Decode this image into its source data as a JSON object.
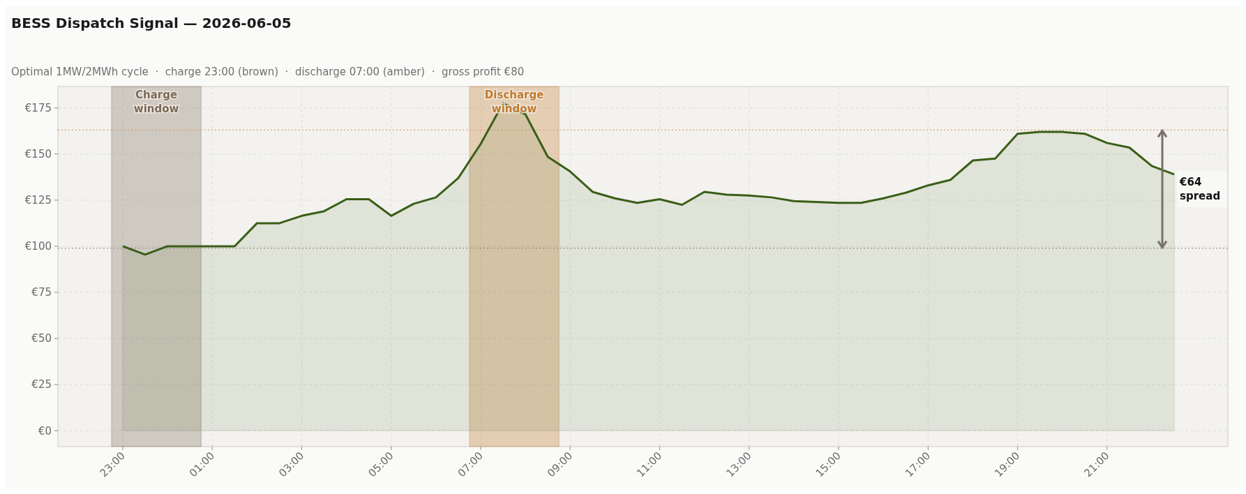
{
  "chart_data": {
    "type": "area",
    "title": "BESS Dispatch Signal — 2026-06-05",
    "subtitle": "Optimal 1MW/2MWh cycle  ·  charge 23:00 (brown)  ·  discharge 07:00 (amber)  ·  gross profit €80",
    "x": [
      "2026-06-04T23:00",
      "2026-06-04T23:30",
      "2026-06-05T00:00",
      "2026-06-05T00:30",
      "2026-06-05T01:00",
      "2026-06-05T01:30",
      "2026-06-05T02:00",
      "2026-06-05T02:30",
      "2026-06-05T03:00",
      "2026-06-05T03:30",
      "2026-06-05T04:00",
      "2026-06-05T04:30",
      "2026-06-05T05:00",
      "2026-06-05T05:30",
      "2026-06-05T06:00",
      "2026-06-05T06:30",
      "2026-06-05T07:00",
      "2026-06-05T07:30",
      "2026-06-05T08:00",
      "2026-06-05T08:30",
      "2026-06-05T09:00",
      "2026-06-05T09:30",
      "2026-06-05T10:00",
      "2026-06-05T10:30",
      "2026-06-05T11:00",
      "2026-06-05T11:30",
      "2026-06-05T12:00",
      "2026-06-05T12:30",
      "2026-06-05T13:00",
      "2026-06-05T13:30",
      "2026-06-05T14:00",
      "2026-06-05T14:30",
      "2026-06-05T15:00",
      "2026-06-05T15:30",
      "2026-06-05T16:00",
      "2026-06-05T16:30",
      "2026-06-05T17:00",
      "2026-06-05T17:30",
      "2026-06-05T18:00",
      "2026-06-05T18:30",
      "2026-06-05T19:00",
      "2026-06-05T19:30",
      "2026-06-05T20:00",
      "2026-06-05T20:30",
      "2026-06-05T21:00",
      "2026-06-05T21:30",
      "2026-06-05T22:00",
      "2026-06-05T22:30"
    ],
    "series": [
      {
        "color": "#3a5e17",
        "values": [
          100,
          95.5,
          100,
          100,
          100,
          100,
          112.5,
          112.5,
          116.5,
          119,
          125.5,
          125.5,
          116.5,
          123,
          126.5,
          137,
          155.5,
          177.5,
          171.5,
          148.5,
          140.5,
          129.5,
          126,
          123.5,
          125.5,
          122.5,
          129.5,
          128,
          127.5,
          126.5,
          124.5,
          124,
          123.5,
          123.5,
          126,
          129,
          133,
          136,
          146.5,
          147.5,
          161,
          162,
          162,
          161,
          156,
          153.5,
          143.5,
          139
        ]
      }
    ],
    "xlim": [
      "2026-06-04T21:33",
      "2026-06-05T23:42"
    ],
    "ylim": [
      -8.6,
      186.6
    ],
    "xticks": [
      {
        "value": "2026-06-04T23:00",
        "label": "23:00"
      },
      {
        "value": "2026-06-05T01:00",
        "label": "01:00"
      },
      {
        "value": "2026-06-05T03:00",
        "label": "03:00"
      },
      {
        "value": "2026-06-05T05:00",
        "label": "05:00"
      },
      {
        "value": "2026-06-05T07:00",
        "label": "07:00"
      },
      {
        "value": "2026-06-05T09:00",
        "label": "09:00"
      },
      {
        "value": "2026-06-05T11:00",
        "label": "11:00"
      },
      {
        "value": "2026-06-05T13:00",
        "label": "13:00"
      },
      {
        "value": "2026-06-05T15:00",
        "label": "15:00"
      },
      {
        "value": "2026-06-05T17:00",
        "label": "17:00"
      },
      {
        "value": "2026-06-05T19:00",
        "label": "19:00"
      },
      {
        "value": "2026-06-05T21:00",
        "label": "21:00"
      }
    ],
    "yticks": [
      {
        "value": 0,
        "label": "€0"
      },
      {
        "value": 25,
        "label": "€25"
      },
      {
        "value": 50,
        "label": "€50"
      },
      {
        "value": 75,
        "label": "€75"
      },
      {
        "value": 100,
        "label": "€100"
      },
      {
        "value": 125,
        "label": "€125"
      },
      {
        "value": 150,
        "label": "€150"
      },
      {
        "value": 175,
        "label": "€175"
      }
    ],
    "grid": true,
    "bands": [
      {
        "axis": "x",
        "from": "2026-06-04T22:45",
        "to": "2026-06-05T00:45",
        "label": "Charge window",
        "color": "#7a6a5a"
      },
      {
        "axis": "x",
        "from": "2026-06-05T06:45",
        "to": "2026-06-05T08:45",
        "label": "Discharge window",
        "color": "#c07a30"
      }
    ],
    "ref_lines": [
      {
        "axis": "y",
        "value": 163,
        "color": "#d9a070",
        "line_style": "dotted"
      },
      {
        "axis": "y",
        "value": 99,
        "color": "#9a9088",
        "line_style": "dotted"
      }
    ],
    "annotations": [
      "€64 spread"
    ]
  }
}
